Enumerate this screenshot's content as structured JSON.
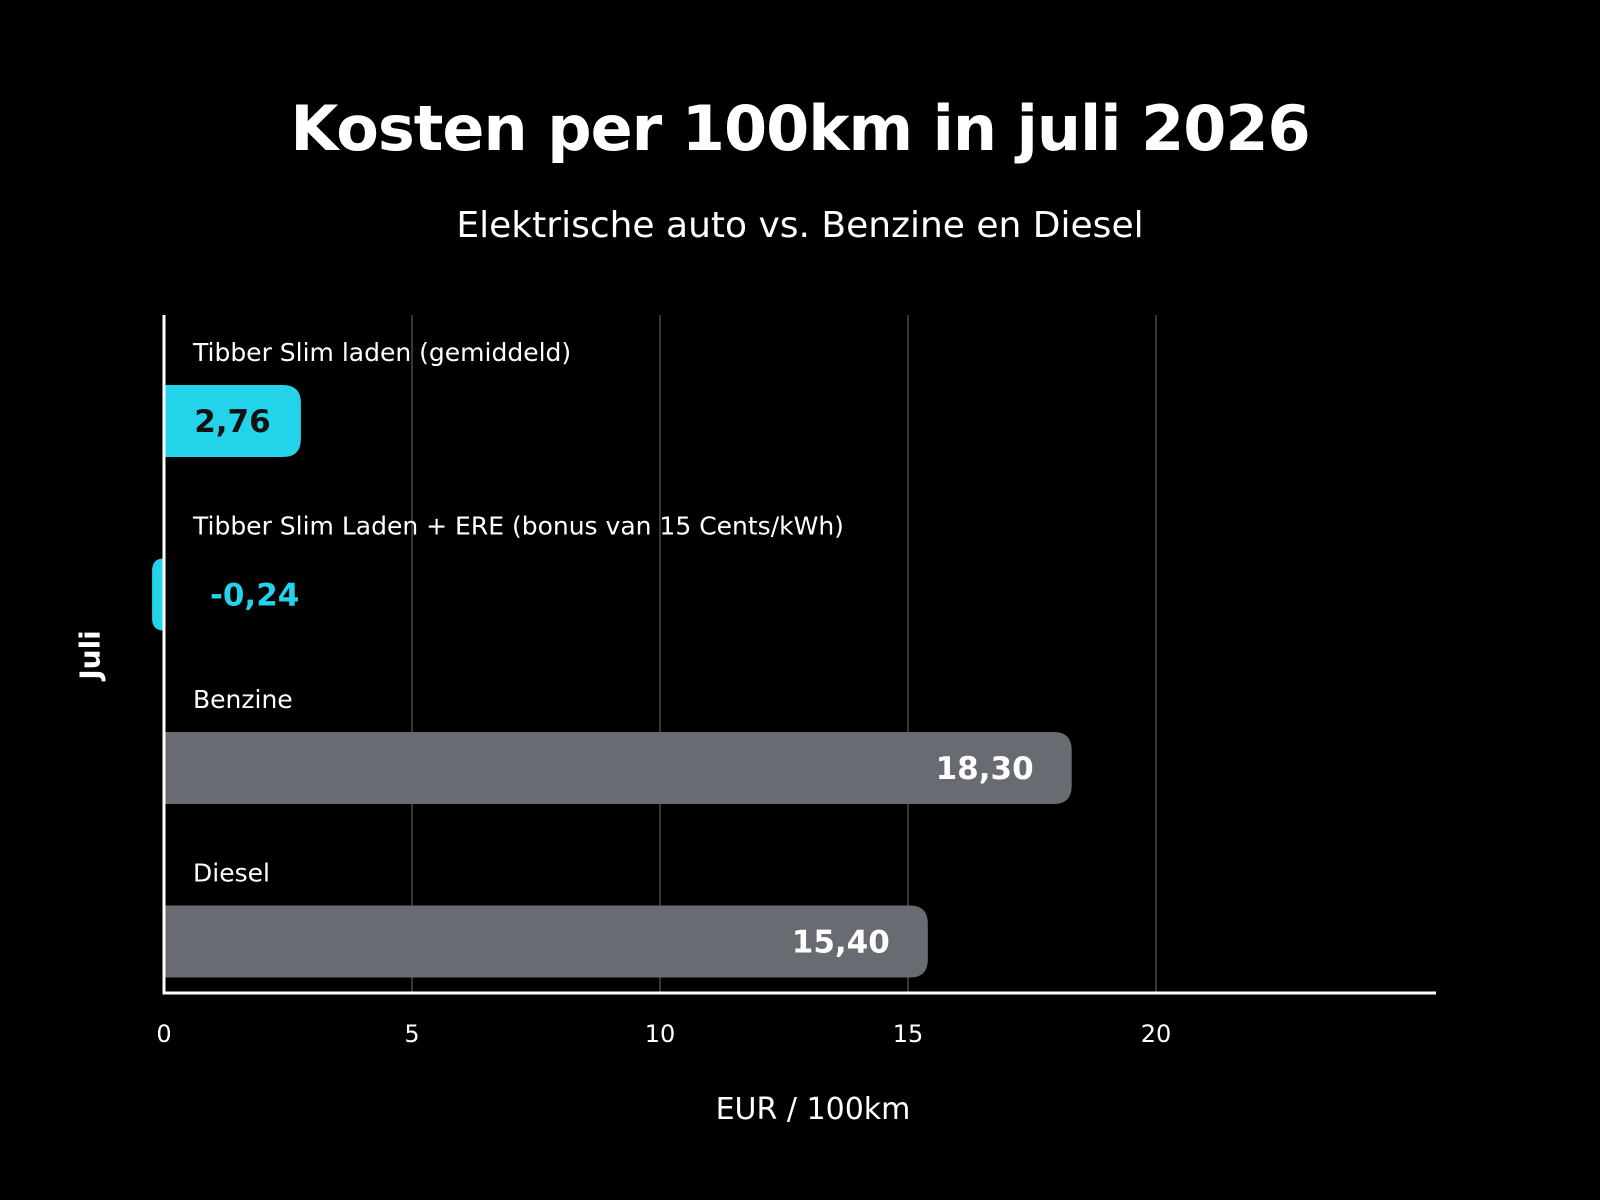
{
  "chart_data": {
    "type": "bar",
    "orientation": "horizontal",
    "title": "Kosten per 100km in juli 2026",
    "subtitle": "Elektrische auto vs. Benzine en Diesel",
    "xlabel": "EUR / 100km",
    "ylabel": "Juli",
    "xlim": [
      0,
      25.5
    ],
    "xticks": [
      0,
      5,
      10,
      15,
      20
    ],
    "grid": true,
    "categories": [
      "Tibber Slim laden (gemiddeld)",
      "Tibber Slim Laden + ERE (bonus van 15 Cents/kWh)",
      "Benzine",
      "Diesel"
    ],
    "values": [
      2.76,
      -0.24,
      18.3,
      15.4
    ],
    "value_labels": [
      "2,76",
      "-0,24",
      "18,30",
      "15,40"
    ],
    "bar_colors": [
      "#22d3ea",
      "#22d3ea",
      "#686c72",
      "#686c72"
    ],
    "value_label_colors": [
      "#111111",
      "#22d3ea",
      "#ffffff",
      "#ffffff"
    ]
  },
  "colors": {
    "background": "#000000",
    "text": "#ffffff",
    "accent": "#22d3ea",
    "fossil_bar": "#686c72",
    "grid": "#6e6e6e"
  }
}
